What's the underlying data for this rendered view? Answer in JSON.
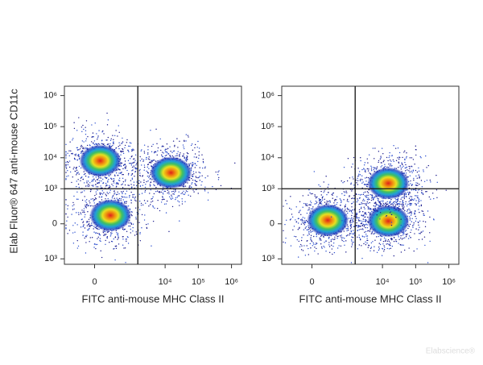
{
  "watermark": "Elabscience®",
  "chart_data": [
    {
      "type": "scatter",
      "scale": "biexponential",
      "y_label": "Elab Fluor® 647 anti-mouse CD11c",
      "x_label": "FITC anti-mouse  MHC Class II",
      "xlim": [
        -600,
        2000000
      ],
      "ylim": [
        -1500,
        2000000
      ],
      "xticks": [
        0,
        {
          "value": 10000,
          "label": "10⁴"
        },
        {
          "value": 100000,
          "label": "10⁵"
        },
        {
          "value": 1000000,
          "label": "10⁶"
        }
      ],
      "yticks": [
        {
          "value": -1000,
          "label": "10³"
        },
        0,
        {
          "value": 1000,
          "label": "10³"
        },
        {
          "value": 10000,
          "label": "10⁴"
        },
        {
          "value": 100000,
          "label": "10⁵"
        },
        {
          "value": 1000000,
          "label": "10⁶"
        }
      ],
      "x": [
        200,
        15000,
        60
      ],
      "y": [
        100,
        3300,
        8000
      ],
      "gate_x": 1500,
      "gate_y": 1000
    },
    {
      "type": "scatter",
      "scale": "biexponential",
      "x_label": "FITC anti-mouse  MHC Class II",
      "xlim": [
        -600,
        2000000
      ],
      "ylim": [
        -1500,
        2000000
      ],
      "xticks": [
        0,
        {
          "value": 10000,
          "label": "10⁴"
        },
        {
          "value": 100000,
          "label": "10⁵"
        },
        {
          "value": 1000000,
          "label": "10⁶"
        }
      ],
      "yticks": [
        {
          "value": -1000,
          "label": "10³"
        },
        0,
        {
          "value": 1000,
          "label": "10³"
        },
        {
          "value": 10000,
          "label": "10⁴"
        },
        {
          "value": 100000,
          "label": "10⁵"
        },
        {
          "value": 1000000,
          "label": "10⁶"
        }
      ],
      "x": [
        200,
        15000,
        15000
      ],
      "y": [
        40,
        30,
        1500
      ],
      "gate_x": 1500,
      "gate_y": 1000
    }
  ]
}
